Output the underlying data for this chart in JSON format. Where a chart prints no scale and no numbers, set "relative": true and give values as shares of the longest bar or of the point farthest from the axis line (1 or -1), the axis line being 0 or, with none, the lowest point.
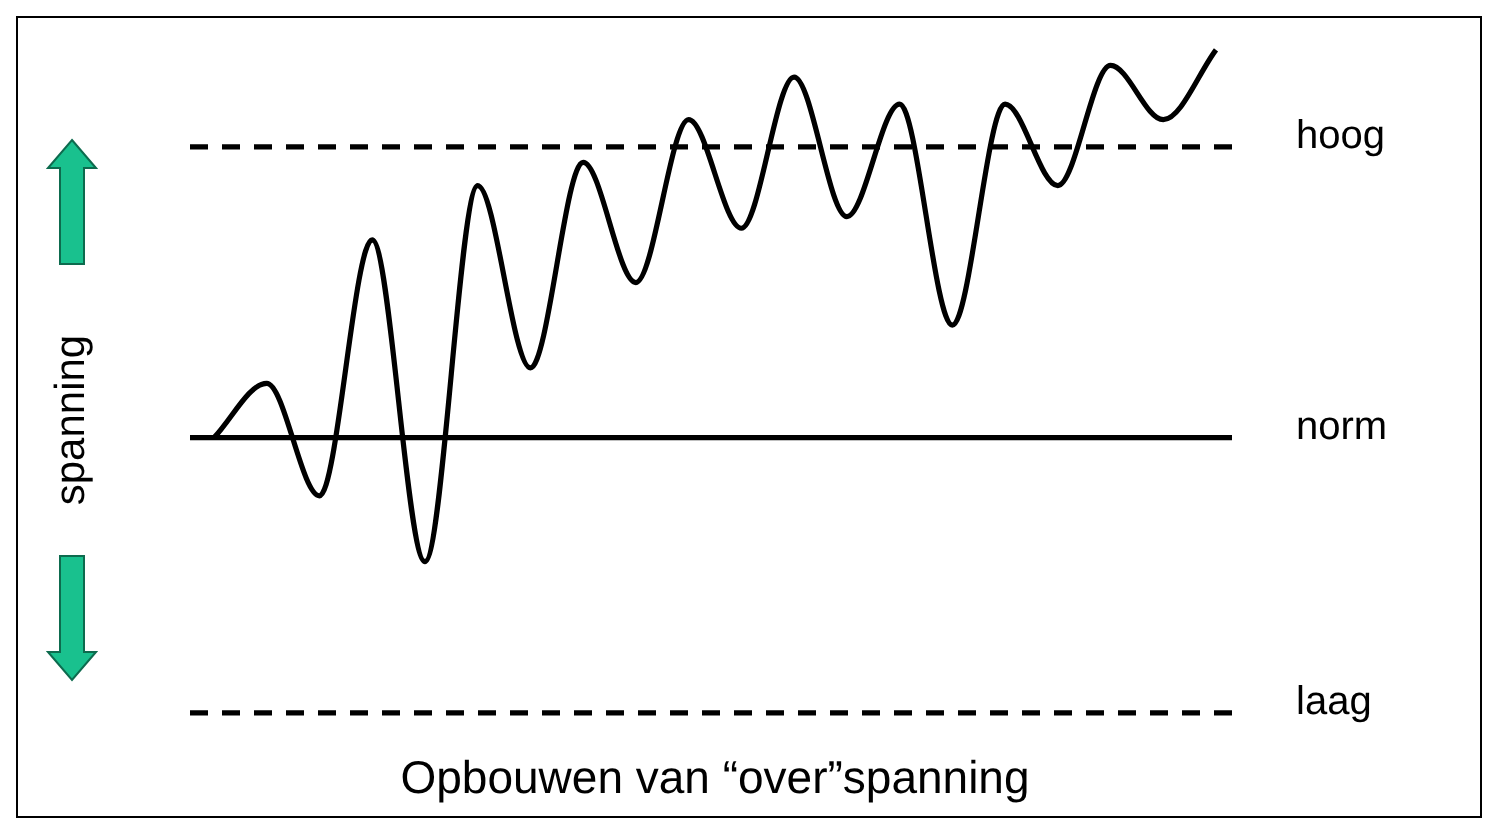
{
  "chart_data": {
    "type": "line",
    "title": "Opbouwen van “over”spanning",
    "ylabel": "spanning",
    "relative": true,
    "categories": [
      null,
      null,
      null,
      null,
      null,
      null,
      null,
      null,
      null,
      null,
      null,
      null,
      null,
      null,
      null,
      null,
      null,
      null,
      null,
      null
    ],
    "series": [
      {
        "color": "#000000",
        "values": [
          0,
          0.14,
          -0.15,
          0.51,
          -0.32,
          0.65,
          0.18,
          0.71,
          0.4,
          0.82,
          0.54,
          0.93,
          0.57,
          0.86,
          0.29,
          0.86,
          0.65,
          0.96,
          0.82,
          1
        ]
      }
    ],
    "ref_lines": [
      {
        "axis": "y",
        "value": 0.75,
        "label": "hoog",
        "line_style": "dashed"
      },
      {
        "axis": "y",
        "value": 0,
        "label": "norm",
        "line_style": "solid"
      },
      {
        "axis": "y",
        "value": -0.71,
        "label": "laag",
        "line_style": "dashed"
      }
    ]
  }
}
